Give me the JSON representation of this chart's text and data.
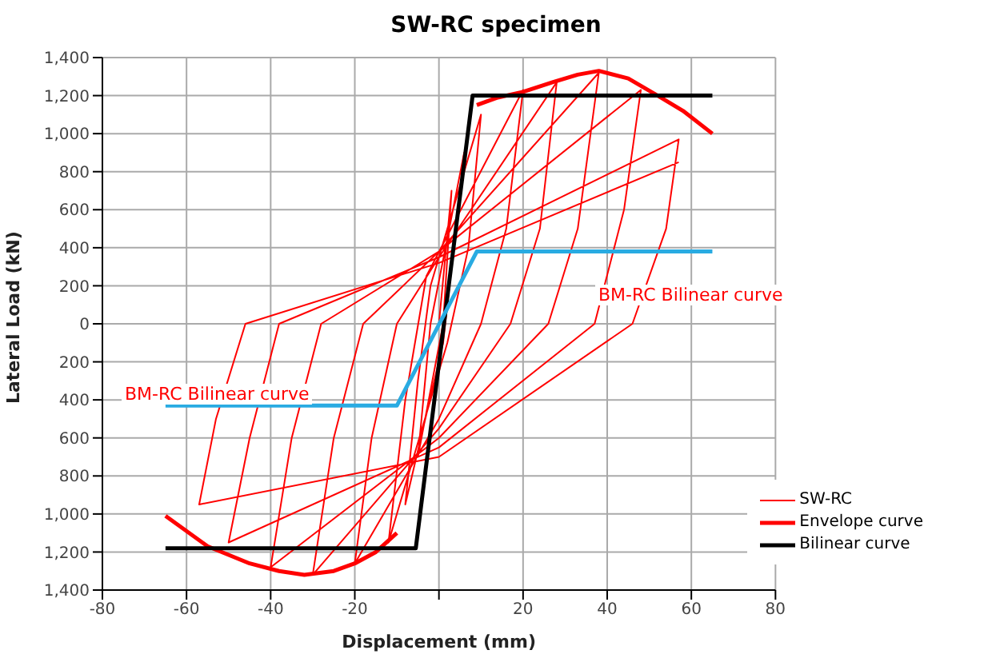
{
  "chart_data": {
    "type": "line",
    "title": "SW-RC specimen",
    "xlabel": "Displacement (mm)",
    "ylabel": "Lateral Load (kN)",
    "xlim": [
      -80,
      80
    ],
    "xticks": [
      -80,
      -60,
      -40,
      -20,
      {
        "value": 0,
        "label": null
      },
      20,
      40,
      60,
      80
    ],
    "ylim": [
      -1400,
      1400
    ],
    "yticks": [
      {
        "value": -1400,
        "label": "1,400"
      },
      {
        "value": -1200,
        "label": "1,200"
      },
      {
        "value": -1000,
        "label": "1,000"
      },
      {
        "value": -800,
        "label": "800"
      },
      {
        "value": -600,
        "label": "600"
      },
      {
        "value": -400,
        "label": "400"
      },
      {
        "value": -200,
        "label": "200"
      },
      0,
      200,
      400,
      600,
      800,
      {
        "value": 1000,
        "label": "1,000"
      },
      {
        "value": 1200,
        "label": "1,200"
      },
      {
        "value": 1400,
        "label": "1,400"
      }
    ],
    "grid": true,
    "legend": "bottom right",
    "marker": "none",
    "series": [
      {
        "name": "SW-RC",
        "color": "#ff0000",
        "x": [
          0,
          3,
          1,
          -5,
          -2,
          6,
          3,
          1,
          -8,
          -5,
          -2,
          10,
          7,
          2,
          -12,
          -8,
          -3,
          20,
          16,
          10,
          0,
          -20,
          -16,
          -10,
          0,
          28,
          24,
          17,
          0,
          -30,
          -25,
          -18,
          0,
          38,
          33,
          26,
          0,
          -40,
          -35,
          -28,
          0,
          48,
          44,
          37,
          0,
          -50,
          -45,
          -38,
          0,
          57,
          54,
          46,
          0,
          -57,
          -53,
          -46,
          0,
          57
        ],
        "values": [
          0,
          700,
          0,
          -700,
          0,
          900,
          300,
          -100,
          -950,
          -300,
          200,
          1100,
          400,
          -100,
          -1150,
          -400,
          250,
          1230,
          500,
          0,
          -500,
          -1260,
          -600,
          0,
          350,
          1270,
          500,
          0,
          -550,
          -1320,
          -600,
          0,
          380,
          1320,
          500,
          0,
          -600,
          -1280,
          -600,
          0,
          380,
          1230,
          600,
          0,
          -650,
          -1150,
          -600,
          0,
          350,
          970,
          500,
          0,
          -700,
          -950,
          -500,
          0,
          320,
          850
        ]
      },
      {
        "name": "Envelope curve",
        "color": "#ff0000",
        "x": [
          -65,
          -55,
          -45,
          -38,
          -32,
          -25,
          -20,
          -15,
          -10,
          null,
          9,
          14,
          20,
          27,
          33,
          38,
          45,
          52,
          58,
          65
        ],
        "values": [
          -1010,
          -1170,
          -1260,
          -1300,
          -1320,
          -1300,
          -1260,
          -1200,
          -1100,
          null,
          1150,
          1190,
          1220,
          1270,
          1310,
          1330,
          1290,
          1200,
          1120,
          1000
        ]
      },
      {
        "name": "Bilinear curve",
        "color": "#000000",
        "x": [
          -65,
          -5.5,
          8,
          65
        ],
        "values": [
          -1180,
          -1180,
          1200,
          1200
        ]
      },
      {
        "color": "#29abe2",
        "x": [
          -65,
          -10,
          9,
          65
        ],
        "values": [
          -430,
          -430,
          380,
          380
        ]
      }
    ],
    "annotations": [
      "BM-RC Bilinear curve",
      "BM-RC Bilinear curve"
    ]
  }
}
